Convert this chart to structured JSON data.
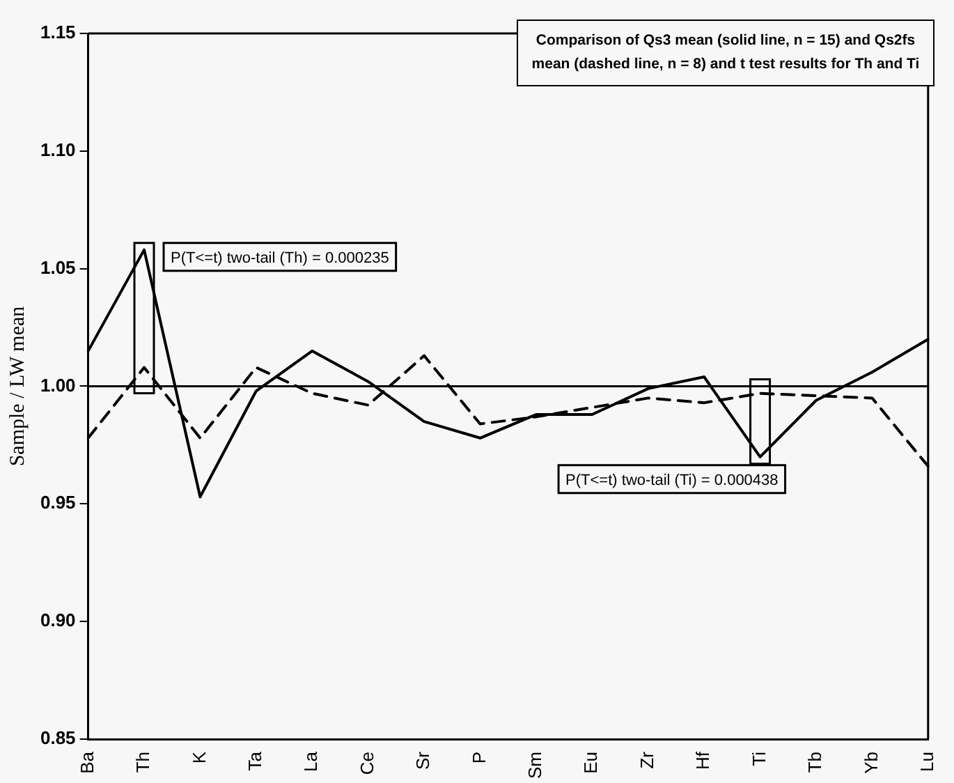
{
  "chart_data": {
    "type": "line",
    "title": "Comparison of Qs3 mean (solid line, n = 15) and Qs2fs mean (dashed line, n = 8) and t test results for Th and Ti",
    "ylabel": "Sample / LW mean",
    "categories": [
      "Ba",
      "Th",
      "K",
      "Ta",
      "La",
      "Ce",
      "Sr",
      "P",
      "Sm",
      "Eu",
      "Zr",
      "Hf",
      "Ti",
      "Tb",
      "Yb",
      "Lu"
    ],
    "series": [
      {
        "color": "#000000",
        "line_style": "solid",
        "values": [
          1.015,
          1.058,
          0.953,
          0.998,
          1.015,
          1.002,
          0.985,
          0.978,
          0.988,
          0.988,
          0.999,
          1.004,
          0.97,
          0.994,
          1.006,
          1.02
        ]
      },
      {
        "color": "#000000",
        "line_style": "dashed",
        "values": [
          0.978,
          1.008,
          0.978,
          1.008,
          0.997,
          0.992,
          1.013,
          0.984,
          0.987,
          0.991,
          0.995,
          0.993,
          0.997,
          0.996,
          0.995,
          0.966
        ]
      }
    ],
    "ylim": [
      0.85,
      1.15
    ],
    "yticks": [
      0.85,
      {
        "value": 0.9,
        "label": "0.90"
      },
      0.95,
      {
        "value": 1,
        "label": "1.00"
      },
      1.05,
      {
        "value": 1.1,
        "label": "1.10"
      },
      1.15
    ],
    "ref_lines": [
      {
        "axis": "y",
        "value": 1.0,
        "color": "#000000"
      }
    ],
    "annotations": [
      {
        "text": "P(T<=t) two-tail (Th) = 0.000235",
        "x": "Th",
        "y": 1.058
      },
      {
        "text": "P(T<=t) two-tail (Ti) = 0.000438",
        "x": "Ti",
        "y": 0.97
      }
    ],
    "grid": false,
    "legend": false,
    "marker": "none"
  }
}
